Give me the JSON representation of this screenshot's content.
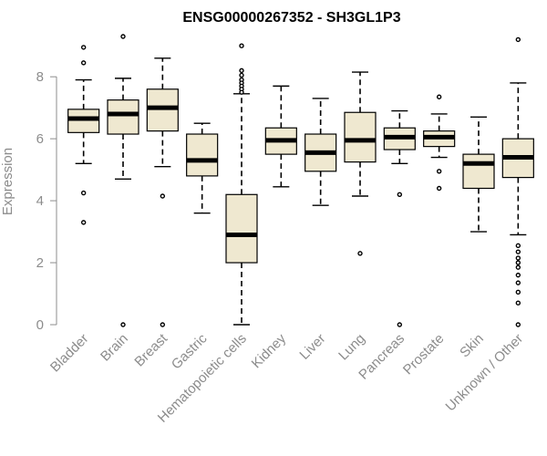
{
  "chart_data": {
    "type": "box",
    "title": "ENSG00000267352 - SH3GL1P3",
    "xlabel": "",
    "ylabel": "Expression",
    "ylim": [
      0,
      9.3
    ],
    "yticks": [
      0,
      2,
      4,
      6,
      8
    ],
    "grid": false,
    "legend": "none",
    "colors": {
      "box_fill": "#efe8d0",
      "box_stroke": "#000000",
      "median": "#000000",
      "axis": "#8c8c8c",
      "title": "#000000"
    },
    "categories": [
      "Bladder",
      "Brain",
      "Breast",
      "Gastric",
      "Hematopoietic cells",
      "Kidney",
      "Liver",
      "Lung",
      "Pancreas",
      "Prostate",
      "Skin",
      "Unknown / Other"
    ],
    "boxes": [
      {
        "name": "Bladder",
        "q1": 6.2,
        "median": 6.65,
        "q3": 6.95,
        "whisker_low": 5.2,
        "whisker_high": 7.9,
        "outliers": [
          8.95,
          8.45,
          4.25,
          3.3
        ]
      },
      {
        "name": "Brain",
        "q1": 6.15,
        "median": 6.8,
        "q3": 7.25,
        "whisker_low": 4.7,
        "whisker_high": 7.95,
        "outliers": [
          9.3,
          0.0
        ]
      },
      {
        "name": "Breast",
        "q1": 6.25,
        "median": 7.0,
        "q3": 7.6,
        "whisker_low": 5.1,
        "whisker_high": 8.6,
        "outliers": [
          4.15,
          0.0
        ]
      },
      {
        "name": "Gastric",
        "q1": 4.8,
        "median": 5.3,
        "q3": 6.15,
        "whisker_low": 3.6,
        "whisker_high": 6.5,
        "outliers": []
      },
      {
        "name": "Hematopoietic cells",
        "q1": 2.0,
        "median": 2.9,
        "q3": 4.2,
        "whisker_low": 0.0,
        "whisker_high": 7.45,
        "outliers": [
          9.0,
          8.2,
          8.05,
          7.9,
          7.8,
          7.7,
          7.6,
          7.5
        ]
      },
      {
        "name": "Kidney",
        "q1": 5.5,
        "median": 5.95,
        "q3": 6.35,
        "whisker_low": 4.45,
        "whisker_high": 7.7,
        "outliers": []
      },
      {
        "name": "Liver",
        "q1": 4.95,
        "median": 5.55,
        "q3": 6.15,
        "whisker_low": 3.85,
        "whisker_high": 7.3,
        "outliers": []
      },
      {
        "name": "Lung",
        "q1": 5.25,
        "median": 5.95,
        "q3": 6.85,
        "whisker_low": 4.15,
        "whisker_high": 8.15,
        "outliers": [
          2.3
        ]
      },
      {
        "name": "Pancreas",
        "q1": 5.65,
        "median": 6.05,
        "q3": 6.35,
        "whisker_low": 5.2,
        "whisker_high": 6.9,
        "outliers": [
          4.2,
          0.0
        ]
      },
      {
        "name": "Prostate",
        "q1": 5.75,
        "median": 6.05,
        "q3": 6.25,
        "whisker_low": 5.4,
        "whisker_high": 6.8,
        "outliers": [
          7.35,
          4.95,
          4.4
        ]
      },
      {
        "name": "Skin",
        "q1": 4.4,
        "median": 5.2,
        "q3": 5.5,
        "whisker_low": 3.0,
        "whisker_high": 6.7,
        "outliers": []
      },
      {
        "name": "Unknown / Other",
        "q1": 4.75,
        "median": 5.4,
        "q3": 6.0,
        "whisker_low": 2.9,
        "whisker_high": 7.8,
        "outliers": [
          9.2,
          2.55,
          2.35,
          2.15,
          2.0,
          1.85,
          1.6,
          1.35,
          1.05,
          0.7,
          0.0
        ]
      }
    ]
  }
}
